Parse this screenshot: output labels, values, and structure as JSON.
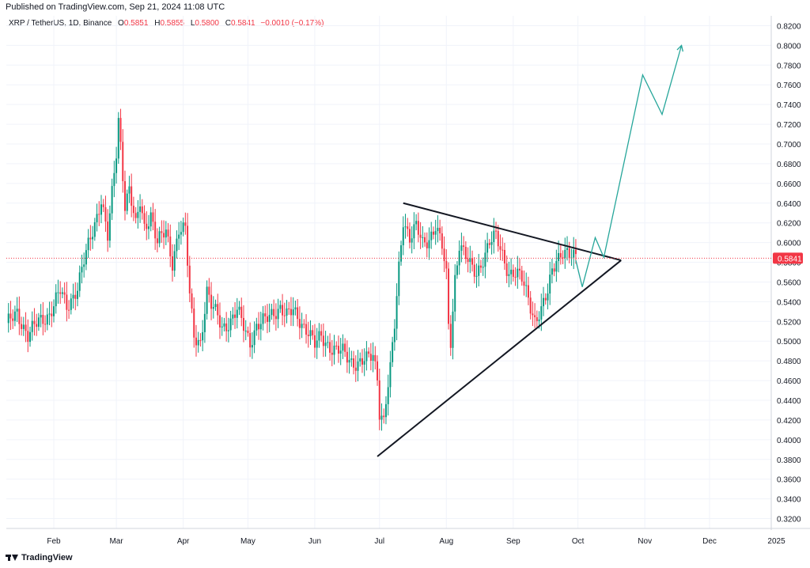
{
  "header": {
    "published": "Published on TradingView.com, Sep 21, 2024 11:08 UTC"
  },
  "legend": {
    "symbol": "XRP / TetherUS, 1D, Binance",
    "open_label": "O",
    "open": "0.5851",
    "high_label": "H",
    "high": "0.5855",
    "low_label": "L",
    "low": "0.5800",
    "close_label": "C",
    "close": "0.5841",
    "change": "−0.0010 (−0.17%)"
  },
  "footer": {
    "brand": "TradingView"
  },
  "chart_data": {
    "type": "candlestick",
    "ylim": [
      0.31,
      0.83
    ],
    "yticks": [
      "0.3200",
      "0.3400",
      "0.3600",
      "0.3800",
      "0.4000",
      "0.4200",
      "0.4400",
      "0.4600",
      "0.4800",
      "0.5000",
      "0.5200",
      "0.5400",
      "0.5600",
      "0.5800",
      "0.6000",
      "0.6200",
      "0.6400",
      "0.6600",
      "0.6800",
      "0.7000",
      "0.7200",
      "0.7400",
      "0.7600",
      "0.7800",
      "0.8000",
      "0.8200"
    ],
    "ytick_values": [
      0.32,
      0.34,
      0.36,
      0.38,
      0.4,
      0.42,
      0.44,
      0.46,
      0.48,
      0.5,
      0.52,
      0.54,
      0.56,
      0.58,
      0.6,
      0.62,
      0.64,
      0.66,
      0.68,
      0.7,
      0.72,
      0.74,
      0.76,
      0.78,
      0.8,
      0.82
    ],
    "xrange_days": [
      0,
      340
    ],
    "xticks": [
      {
        "label": "Feb",
        "day": 22
      },
      {
        "label": "Mar",
        "day": 51
      },
      {
        "label": "Apr",
        "day": 82
      },
      {
        "label": "May",
        "day": 112
      },
      {
        "label": "Jun",
        "day": 143
      },
      {
        "label": "Jul",
        "day": 173
      },
      {
        "label": "Aug",
        "day": 204
      },
      {
        "label": "Sep",
        "day": 235
      },
      {
        "label": "Oct",
        "day": 265
      },
      {
        "label": "Nov",
        "day": 296
      },
      {
        "label": "Dec",
        "day": 326
      },
      {
        "label": "2025",
        "day": 357
      }
    ],
    "last_price": "0.5841",
    "last_value": 0.5841,
    "colors": {
      "up": "#089981",
      "down": "#f23645",
      "trendline": "#131722",
      "projection": "#26a69a",
      "grid": "#f0f3fa",
      "axis_text": "#131722"
    },
    "anchors": [
      [
        0,
        0.515
      ],
      [
        5,
        0.53
      ],
      [
        10,
        0.505
      ],
      [
        15,
        0.52
      ],
      [
        20,
        0.528
      ],
      [
        25,
        0.55
      ],
      [
        28,
        0.535
      ],
      [
        33,
        0.555
      ],
      [
        36,
        0.58
      ],
      [
        41,
        0.62
      ],
      [
        44,
        0.645
      ],
      [
        47,
        0.605
      ],
      [
        51,
        0.69
      ],
      [
        52,
        0.725
      ],
      [
        53,
        0.7
      ],
      [
        55,
        0.64
      ],
      [
        57,
        0.655
      ],
      [
        60,
        0.615
      ],
      [
        62,
        0.64
      ],
      [
        64,
        0.615
      ],
      [
        67,
        0.63
      ],
      [
        70,
        0.6
      ],
      [
        74,
        0.61
      ],
      [
        77,
        0.58
      ],
      [
        80,
        0.615
      ],
      [
        83,
        0.612
      ],
      [
        85,
        0.545
      ],
      [
        87,
        0.505
      ],
      [
        90,
        0.5
      ],
      [
        93,
        0.55
      ],
      [
        95,
        0.535
      ],
      [
        98,
        0.525
      ],
      [
        100,
        0.515
      ],
      [
        104,
        0.52
      ],
      [
        107,
        0.53
      ],
      [
        110,
        0.515
      ],
      [
        113,
        0.5
      ],
      [
        116,
        0.515
      ],
      [
        120,
        0.52
      ],
      [
        124,
        0.53
      ],
      [
        127,
        0.535
      ],
      [
        130,
        0.525
      ],
      [
        133,
        0.53
      ],
      [
        136,
        0.522
      ],
      [
        140,
        0.51
      ],
      [
        143,
        0.495
      ],
      [
        146,
        0.505
      ],
      [
        150,
        0.495
      ],
      [
        153,
        0.49
      ],
      [
        156,
        0.488
      ],
      [
        160,
        0.48
      ],
      [
        163,
        0.478
      ],
      [
        167,
        0.48
      ],
      [
        170,
        0.486
      ],
      [
        172,
        0.465
      ],
      [
        173,
        0.43
      ],
      [
        175,
        0.42
      ],
      [
        176,
        0.44
      ],
      [
        178,
        0.47
      ],
      [
        180,
        0.515
      ],
      [
        182,
        0.575
      ],
      [
        184,
        0.625
      ],
      [
        187,
        0.605
      ],
      [
        190,
        0.615
      ],
      [
        193,
        0.598
      ],
      [
        196,
        0.605
      ],
      [
        199,
        0.618
      ],
      [
        202,
        0.595
      ],
      [
        204,
        0.565
      ],
      [
        205,
        0.515
      ],
      [
        206,
        0.5
      ],
      [
        208,
        0.565
      ],
      [
        210,
        0.6
      ],
      [
        212,
        0.59
      ],
      [
        215,
        0.575
      ],
      [
        218,
        0.568
      ],
      [
        221,
        0.585
      ],
      [
        224,
        0.6
      ],
      [
        227,
        0.605
      ],
      [
        230,
        0.588
      ],
      [
        233,
        0.57
      ],
      [
        236,
        0.568
      ],
      [
        239,
        0.562
      ],
      [
        242,
        0.545
      ],
      [
        245,
        0.522
      ],
      [
        248,
        0.53
      ],
      [
        251,
        0.548
      ],
      [
        253,
        0.572
      ],
      [
        255,
        0.585
      ],
      [
        258,
        0.592
      ],
      [
        261,
        0.585
      ],
      [
        264,
        0.584
      ]
    ],
    "lower_trendline": {
      "start": {
        "day": 172,
        "value": 0.383
      },
      "end": {
        "day": 285,
        "value": 0.582
      }
    },
    "upper_trendline": {
      "start": {
        "day": 184,
        "value": 0.64
      },
      "end": {
        "day": 285,
        "value": 0.582
      }
    },
    "projection": [
      {
        "day": 264,
        "value": 0.582
      },
      {
        "day": 267,
        "value": 0.555
      },
      {
        "day": 273,
        "value": 0.605
      },
      {
        "day": 277,
        "value": 0.585
      },
      {
        "day": 295,
        "value": 0.77
      },
      {
        "day": 304,
        "value": 0.73
      },
      {
        "day": 313,
        "value": 0.8
      }
    ]
  }
}
